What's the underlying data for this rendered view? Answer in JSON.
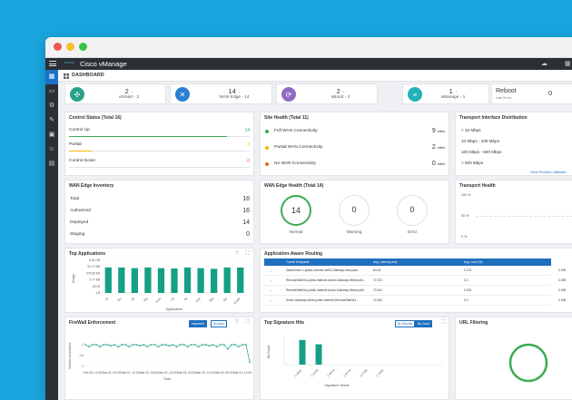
{
  "app": {
    "title": "Cisco vManage",
    "logo_text": "cisco"
  },
  "dashboard_label": "DASHBOARD",
  "summary": [
    {
      "count": "2",
      "arrow": "↑",
      "label": "vSmart - 2",
      "color": "#2aa189"
    },
    {
      "count": "14",
      "arrow": "↑",
      "label": "WAN Edge - 14",
      "color": "#2b7fd0"
    },
    {
      "count": "2",
      "arrow": "↑",
      "label": "vBond - 2",
      "color": "#8e6cc4"
    },
    {
      "count": "1",
      "arrow": "↑",
      "label": "vManage - 1",
      "color": "#23b3b8"
    }
  ],
  "reboot": {
    "label": "Reboot",
    "sublabel": "Last 24 hrs",
    "count": "0"
  },
  "control_status": {
    "title": "Control Status (Total 16)",
    "rows": [
      {
        "label": "Control Up",
        "value": "14",
        "fraction": 0.875,
        "color": "#3cab52"
      },
      {
        "label": "Partial",
        "value": "2",
        "fraction": 0.125,
        "color": "#f2b705"
      },
      {
        "label": "Control Down",
        "value": "0",
        "fraction": 0.0,
        "color": "#e8642c"
      }
    ]
  },
  "site_health": {
    "title": "Site Health (Total 11)",
    "rows": [
      {
        "label": "Full WAN Connectivity",
        "value": "9",
        "unit": "sites",
        "color": "#3cab52"
      },
      {
        "label": "Partial WAN Connectivity",
        "value": "2",
        "unit": "sites",
        "color": "#f2b705"
      },
      {
        "label": "No WAN Connectivity",
        "value": "0",
        "unit": "sites",
        "color": "#e8642c"
      }
    ]
  },
  "transport_interface": {
    "title": "Transport Interface Distribution",
    "rows": [
      "< 10 Mbps",
      "10 Mbps - 100 Mbps",
      "100 Mbps - 500 Mbps",
      "> 500 Mbps"
    ],
    "link": "View Percent Utilizatio"
  },
  "wan_inventory": {
    "title": "WAN Edge Inventory",
    "rows": [
      {
        "label": "Total",
        "value": "16"
      },
      {
        "label": "Authorized",
        "value": "16"
      },
      {
        "label": "Deployed",
        "value": "14"
      },
      {
        "label": "Staging",
        "value": "0"
      }
    ]
  },
  "wan_health": {
    "title": "WAN Edge Health (Total 14)",
    "gauges": [
      {
        "value": "14",
        "label": "Normal"
      },
      {
        "value": "0",
        "label": "Warning"
      },
      {
        "value": "0",
        "label": "Error"
      }
    ]
  },
  "transport_health": {
    "title": "Transport Health",
    "yticks": [
      "100 %",
      "50 %",
      "0 %"
    ]
  },
  "top_apps": {
    "title": "Top Applications",
    "ylabel": "Usage",
    "xlabel": "Application",
    "yticks": [
      "6.51 GB",
      "91.17 MB",
      "976.56 KB",
      "9.77 KB",
      "100 B",
      "1 B"
    ],
    "categories": [
      "ssl",
      "dns",
      "ntp",
      "http",
      "snmp",
      "sip",
      "ftp",
      "icmp",
      "ldap",
      "bgp",
      "google"
    ],
    "values": [
      0.78,
      0.78,
      0.76,
      0.78,
      0.76,
      0.75,
      0.78,
      0.76,
      0.74,
      0.78,
      0.78
    ]
  },
  "aar": {
    "title": "Application-Aware Routing",
    "headers": [
      "Tunnel Endpoints",
      "Avg. Latency (ms)",
      "Avg. Loss (%)"
    ],
    "rows": [
      {
        "endpoint": "DataCenter-1.public-internet-AWS-Gateway-East.publ...",
        "latency": "84.19",
        "loss": "0.274"
      },
      {
        "endpoint": "RemoteSiteDe1-public-internet-Azure-Gateway-West.publ...",
        "latency": "72.373",
        "loss": "0.2"
      },
      {
        "endpoint": "RemoteSiteDe1-public-internet-Azure-Gateway-West publi...",
        "latency": "73.161",
        "loss": "0.223"
      },
      {
        "endpoint": "Azure-Gateway-West.public-internet-RemoteSiteDe1...",
        "latency": "72.461",
        "loss": "0.2"
      }
    ],
    "right_vals": [
      "0.005",
      "0.005",
      "0.005",
      "0.005"
    ]
  },
  "firewall": {
    "title": "FireWall Enforcement",
    "buttons": [
      "Inspected",
      "Dropped"
    ],
    "ylabel": "Number of sessions",
    "xlabel": "Time",
    "yticks": [
      "2",
      "1.5",
      "1"
    ],
    "xticks": [
      "Feb 28, 12:00",
      "Mar 01, 00:00",
      "Mar 01, 12:00",
      "Mar 02, 00:00",
      "Mar 02, 12:00",
      "Mar 03, 00:00",
      "Mar 03, 12:00",
      "Mar 04, 00:00",
      "Mar 04, 12:00"
    ],
    "values": [
      2,
      1.9,
      2,
      2,
      1.9,
      2,
      2,
      1.95,
      2,
      1.9,
      2,
      2,
      1.9,
      2,
      2,
      1.95,
      2,
      1.9,
      2,
      2,
      1.9,
      2,
      2,
      1.95,
      2,
      1.9,
      2,
      2,
      1.9,
      2,
      2,
      1.9,
      2,
      2,
      1.95,
      2,
      1.9,
      2,
      2,
      1.8,
      2,
      2,
      1.9,
      2,
      2,
      1.2
    ]
  },
  "signature": {
    "title": "Top Signature Hits",
    "buttons": [
      "By Severity",
      "By Count"
    ],
    "ylabel": "Hit Count",
    "xlabel": "Signature Name",
    "categories": [
      "1:34567",
      "1:23456",
      "1:45678",
      "1:56789",
      "1:67890",
      "1:78901"
    ],
    "values": [
      0.85,
      0.7,
      0,
      0,
      0,
      0
    ]
  },
  "url_filtering": {
    "title": "URL Filtering",
    "ring_color": "#3cab52"
  }
}
